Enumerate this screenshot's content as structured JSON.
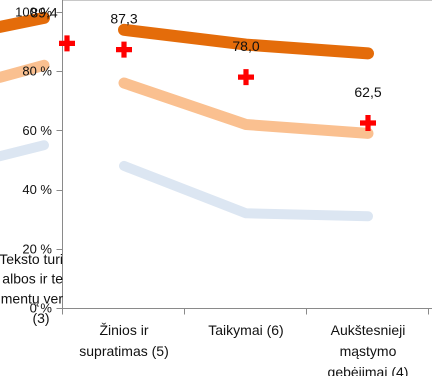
{
  "chart_data": {
    "type": "line",
    "categories": [
      {
        "lines": [
          "Teksto turi",
          "albos ir te",
          "mentų ver",
          "(3)"
        ]
      },
      {
        "lines": [
          "Žinios ir",
          "supratimas (5)"
        ]
      },
      {
        "lines": [
          "Taikymai (6)"
        ]
      },
      {
        "lines": [
          "Aukštesnieji",
          "mąstymo",
          "gebėjimai (4)"
        ]
      }
    ],
    "series": [
      {
        "values": [
          98,
          94,
          89,
          86
        ],
        "color": "#E46C0A"
      },
      {
        "values": [
          82,
          76,
          62,
          59
        ],
        "color": "#FAC090"
      },
      {
        "values": [
          55,
          48,
          32,
          31
        ],
        "color": "#DCE6F2"
      }
    ],
    "markers": {
      "shape": "cross",
      "color": "#FF0000",
      "values": [
        89.4,
        87.3,
        78.0,
        62.5
      ],
      "labels": [
        "89,4",
        "87,3",
        "78,0",
        "62,5"
      ]
    },
    "yaxis": {
      "ylim": [
        0,
        100
      ],
      "ticks": [
        0,
        20,
        40,
        60,
        80,
        100
      ],
      "tick_labels": [
        "0 %",
        "20 %",
        "40 %",
        "60 %",
        "80 %",
        "100 %"
      ]
    },
    "grid": false,
    "legend": "none"
  }
}
